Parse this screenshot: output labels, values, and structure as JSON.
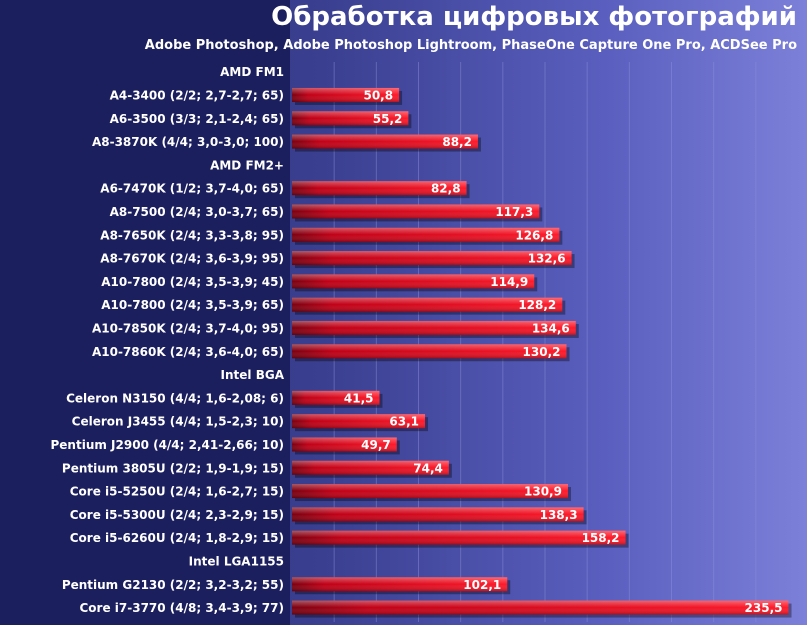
{
  "chart_data": {
    "type": "bar",
    "orientation": "horizontal",
    "title": "Обработка цифровых фотографий",
    "subtitle": "Adobe Photoshop, Adobe Photoshop Lightroom, PhaseOne Capture One Pro, ACDSee Pro",
    "xlim": [
      0,
      240
    ],
    "rows": [
      {
        "kind": "group",
        "label": "AMD FM1"
      },
      {
        "kind": "bar",
        "label": "A4-3400 (2/2; 2,7-2,7; 65)",
        "value": 50.8,
        "value_label": "50,8"
      },
      {
        "kind": "bar",
        "label": "A6-3500 (3/3; 2,1-2,4; 65)",
        "value": 55.2,
        "value_label": "55,2"
      },
      {
        "kind": "bar",
        "label": "A8-3870K (4/4; 3,0-3,0; 100)",
        "value": 88.2,
        "value_label": "88,2"
      },
      {
        "kind": "group",
        "label": "AMD FM2+"
      },
      {
        "kind": "bar",
        "label": "A6-7470K (1/2; 3,7-4,0; 65)",
        "value": 82.8,
        "value_label": "82,8"
      },
      {
        "kind": "bar",
        "label": "A8-7500 (2/4; 3,0-3,7; 65)",
        "value": 117.3,
        "value_label": "117,3"
      },
      {
        "kind": "bar",
        "label": "A8-7650K (2/4; 3,3-3,8; 95)",
        "value": 126.8,
        "value_label": "126,8"
      },
      {
        "kind": "bar",
        "label": "A8-7670K (2/4; 3,6-3,9; 95)",
        "value": 132.6,
        "value_label": "132,6"
      },
      {
        "kind": "bar",
        "label": "A10-7800 (2/4; 3,5-3,9; 45)",
        "value": 114.9,
        "value_label": "114,9"
      },
      {
        "kind": "bar",
        "label": "A10-7800 (2/4; 3,5-3,9; 65)",
        "value": 128.2,
        "value_label": "128,2"
      },
      {
        "kind": "bar",
        "label": "A10-7850K (2/4; 3,7-4,0; 95)",
        "value": 134.6,
        "value_label": "134,6"
      },
      {
        "kind": "bar",
        "label": "A10-7860K (2/4; 3,6-4,0; 65)",
        "value": 130.2,
        "value_label": "130,2"
      },
      {
        "kind": "group",
        "label": "Intel BGA"
      },
      {
        "kind": "bar",
        "label": "Celeron N3150 (4/4; 1,6-2,08; 6)",
        "value": 41.5,
        "value_label": "41,5"
      },
      {
        "kind": "bar",
        "label": "Celeron J3455 (4/4; 1,5-2,3; 10)",
        "value": 63.1,
        "value_label": "63,1"
      },
      {
        "kind": "bar",
        "label": "Pentium J2900 (4/4; 2,41-2,66; 10)",
        "value": 49.7,
        "value_label": "49,7"
      },
      {
        "kind": "bar",
        "label": "Pentium 3805U (2/2; 1,9-1,9; 15)",
        "value": 74.4,
        "value_label": "74,4"
      },
      {
        "kind": "bar",
        "label": "Core i5-5250U (2/4; 1,6-2,7; 15)",
        "value": 130.9,
        "value_label": "130,9"
      },
      {
        "kind": "bar",
        "label": "Core i5-5300U (2/4; 2,3-2,9; 15)",
        "value": 138.3,
        "value_label": "138,3"
      },
      {
        "kind": "bar",
        "label": "Core i5-6260U (2/4; 1,8-2,9; 15)",
        "value": 158.2,
        "value_label": "158,2"
      },
      {
        "kind": "group",
        "label": "Intel LGA1155"
      },
      {
        "kind": "bar",
        "label": "Pentium G2130 (2/2; 3,2-3,2; 55)",
        "value": 102.1,
        "value_label": "102,1"
      },
      {
        "kind": "bar",
        "label": "Core i7-3770 (4/8; 3,4-3,9; 77)",
        "value": 235.5,
        "value_label": "235,5"
      }
    ],
    "colors": {
      "bar": "#d4001a",
      "bar_dark": "#7a0010",
      "grid": "#8e92d8",
      "panel": "#1c1f5e",
      "text": "#ffffff"
    }
  }
}
